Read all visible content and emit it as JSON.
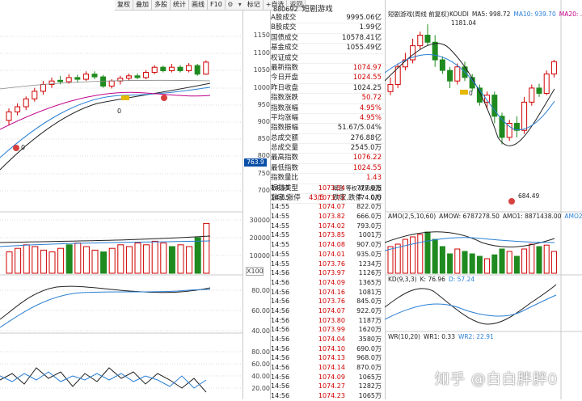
{
  "toolbar": {
    "buttons": [
      "复权",
      "叠加",
      "多股",
      "统计",
      "画线",
      "F10",
      "标记",
      "+自选",
      "返回"
    ],
    "icons": [
      "gear-icon",
      "chevron-down-icon"
    ]
  },
  "left_axis": {
    "main": [
      "1150",
      "1100",
      "1050",
      "1000",
      "950",
      "900",
      "850",
      "800",
      "750",
      "700"
    ],
    "current_tag": "763.9",
    "vol": [
      "30000",
      "20000",
      "10000"
    ],
    "vol_unit": "X100",
    "ind1": [
      "80.00",
      "60.00",
      "40.00"
    ],
    "ind2": [
      "80.00",
      "60.00",
      "40.00",
      "20.00"
    ]
  },
  "left_markers": {
    "m1": "0",
    "m2": "0"
  },
  "stock": {
    "code": "880692",
    "name": "短剧游戏"
  },
  "stats": [
    {
      "label": "A股成交",
      "value": "9995.06亿",
      "red": false
    },
    {
      "label": "B股成交",
      "value": "1.99亿",
      "red": false
    },
    {
      "label": "国债成交",
      "value": "10578.41亿",
      "red": false
    },
    {
      "label": "基金成交",
      "value": "1055.49亿",
      "red": false
    },
    {
      "label": "权证成交",
      "value": "",
      "red": false
    },
    {
      "label": "最新指数",
      "value": "1074.97",
      "red": true
    },
    {
      "label": "今日开盘",
      "value": "1024.55",
      "red": true
    },
    {
      "label": "昨日收盘",
      "value": "1024.25",
      "red": false
    },
    {
      "label": "指数涨跌",
      "value": "50.72",
      "red": true
    },
    {
      "label": "指数涨幅",
      "value": "4.95%",
      "red": true
    },
    {
      "label": "平均涨幅",
      "value": "4.95%",
      "red": true
    },
    {
      "label": "指数振幅",
      "value": "51.67/5.04%",
      "red": false
    },
    {
      "label": "总成交额",
      "value": "276.88亿",
      "red": false
    },
    {
      "label": "总成交量",
      "value": "2545.0万",
      "red": false
    },
    {
      "label": "最高指数",
      "value": "1076.22",
      "red": true
    },
    {
      "label": "最低指数",
      "value": "1024.55",
      "red": true
    },
    {
      "label": "指数量比",
      "value": "1.43",
      "red": true
    }
  ],
  "board": {
    "label": "板指类型",
    "tabs": "概念 等权 成份股指"
  },
  "updown": {
    "label": "涨家.涨停",
    "value1": "43/5",
    "label2": "跌家.跌停",
    "value2": "0/0"
  },
  "ticks": [
    {
      "t": "14:55",
      "p": "1073.54",
      "v": "777.0万"
    },
    {
      "t": "14:55",
      "p": "1073.72",
      "v": "774.0万"
    },
    {
      "t": "14:55",
      "p": "1074.07",
      "v": "822.0万"
    },
    {
      "t": "14:55",
      "p": "1073.82",
      "v": "666.0万"
    },
    {
      "t": "14:55",
      "p": "1074.02",
      "v": "793.0万"
    },
    {
      "t": "14:55",
      "p": "1073.85",
      "v": "1001万"
    },
    {
      "t": "14:55",
      "p": "1074.08",
      "v": "907.0万"
    },
    {
      "t": "14:55",
      "p": "1074.01",
      "v": "935.0万"
    },
    {
      "t": "14:55",
      "p": "1073.76",
      "v": "1234万"
    },
    {
      "t": "14:56",
      "p": "1073.97",
      "v": "1126万"
    },
    {
      "t": "14:56",
      "p": "1074.09",
      "v": "1365万"
    },
    {
      "t": "14:56",
      "p": "1074.16",
      "v": "1081万"
    },
    {
      "t": "14:56",
      "p": "1073.76",
      "v": "845.0万"
    },
    {
      "t": "14:56",
      "p": "1074.07",
      "v": "922.0万"
    },
    {
      "t": "14:56",
      "p": "1073.80",
      "v": "1187万"
    },
    {
      "t": "14:56",
      "p": "1073.99",
      "v": "1620万"
    },
    {
      "t": "14:56",
      "p": "1074.04",
      "v": "3580万"
    },
    {
      "t": "14:56",
      "p": "1074.10",
      "v": "690.0万"
    },
    {
      "t": "14:56",
      "p": "1074.13",
      "v": "968.0万"
    },
    {
      "t": "14:56",
      "p": "1074.14",
      "v": "870.0万"
    },
    {
      "t": "14:56",
      "p": "1074.09",
      "v": "1065万"
    },
    {
      "t": "14:56",
      "p": "1074.27",
      "v": "1282万"
    },
    {
      "t": "14:56",
      "p": "1074.23",
      "v": "1065万"
    }
  ],
  "right": {
    "title": "短剧游戏(周线 前复权)",
    "legend": [
      {
        "text": "KOUDI",
        "color": "#222222"
      },
      {
        "text": "MA5: 998.72",
        "color": "#222222"
      },
      {
        "text": "MA10: 939.70",
        "color": "#2a7fd4"
      },
      {
        "text": "MA20: ...",
        "color": "#c0008a"
      }
    ],
    "high_label": "1181.04",
    "low_label": "684.49",
    "marker": "0",
    "amo_legend": [
      {
        "text": "AMO(2,5,10,60)",
        "color": "#222222"
      },
      {
        "text": "AMOW: 6787278.50",
        "color": "#222222"
      },
      {
        "text": "AMO1: 8871438.00",
        "color": "#222222"
      },
      {
        "text": "AMO2: 681004",
        "color": "#2a7fd4"
      }
    ],
    "kd_legend": [
      {
        "text": "KD(9,3,3)",
        "color": "#222222"
      },
      {
        "text": "K: 76.96",
        "color": "#222222"
      },
      {
        "text": "D: 57.24",
        "color": "#2a7fd4"
      }
    ],
    "wr_legend": [
      {
        "text": "WR(10,20)",
        "color": "#222222"
      },
      {
        "text": "WR1: 0.33",
        "color": "#222222"
      },
      {
        "text": "WR2: 22.91",
        "color": "#2a7fd4"
      }
    ]
  },
  "watermark": "知乎 @白白胖胖0",
  "colors": {
    "up": "#d00000",
    "down": "#1f8a1f",
    "ma1": "#222222",
    "ma2": "#2a7fd4",
    "ma3": "#c0008a"
  }
}
